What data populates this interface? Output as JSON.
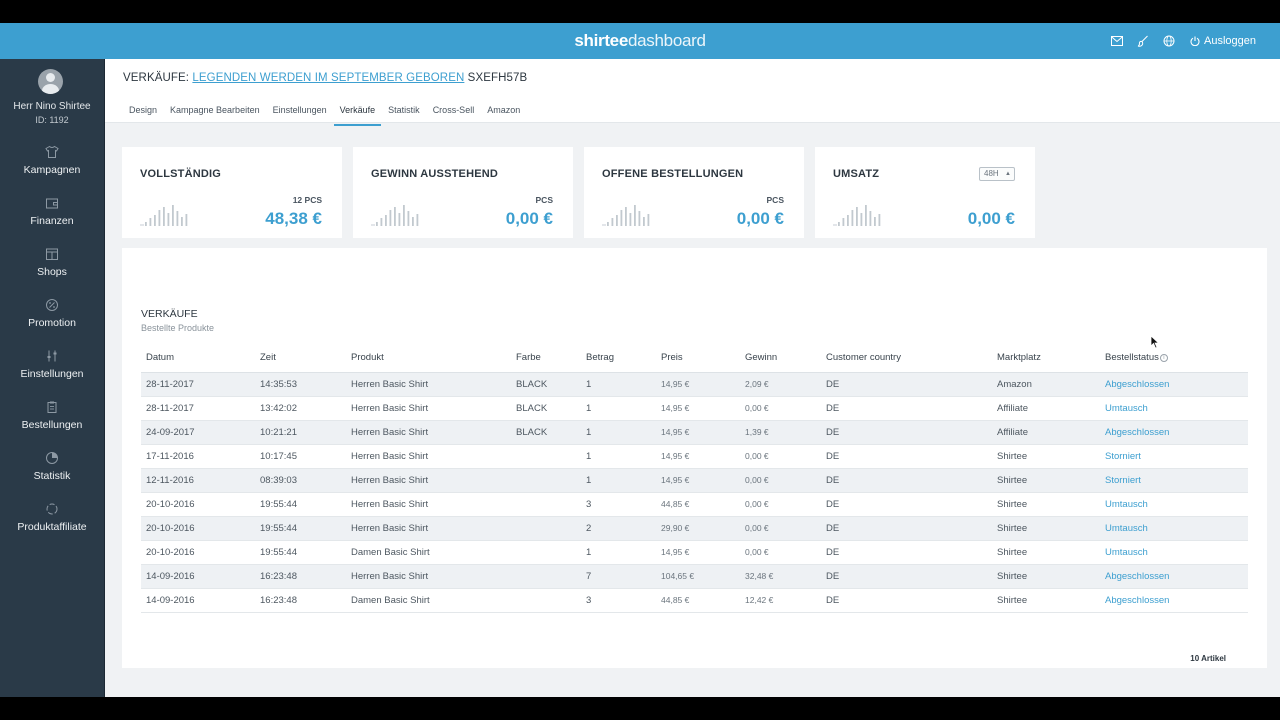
{
  "header": {
    "brand_bold": "shirtee",
    "brand_light": "dashboard",
    "logout_label": "Ausloggen",
    "icons": [
      "mail-icon",
      "brush-icon",
      "globe-icon",
      "power-icon"
    ]
  },
  "user": {
    "name": "Herr Nino Shirtee",
    "id": "ID: 1192"
  },
  "sidebar": {
    "items": [
      {
        "label": "Kampagnen",
        "icon": "tshirt-icon"
      },
      {
        "label": "Finanzen",
        "icon": "wallet-icon"
      },
      {
        "label": "Shops",
        "icon": "shop-icon"
      },
      {
        "label": "Promotion",
        "icon": "percent-icon"
      },
      {
        "label": "Einstellungen",
        "icon": "sliders-icon"
      },
      {
        "label": "Bestellungen",
        "icon": "clipboard-icon"
      },
      {
        "label": "Statistik",
        "icon": "pie-icon"
      },
      {
        "label": "Produktaffiliate",
        "icon": "cycle-icon"
      }
    ]
  },
  "page": {
    "title_prefix": "VERKÄUFE:",
    "campaign": "LEGENDEN WERDEN IM SEPTEMBER GEBOREN",
    "code": "SXEFH57B"
  },
  "tabs": [
    {
      "label": "Design"
    },
    {
      "label": "Kampagne Bearbeiten"
    },
    {
      "label": "Einstellungen"
    },
    {
      "label": "Verkäufe",
      "active": true
    },
    {
      "label": "Statistik"
    },
    {
      "label": "Cross-Sell"
    },
    {
      "label": "Amazon"
    }
  ],
  "cards": [
    {
      "title": "VOLLSTÄNDIG",
      "pcs": "12 PCS",
      "amount": "48,38 €"
    },
    {
      "title": "GEWINN AUSSTEHEND",
      "pcs": "PCS",
      "amount": "0,00 €"
    },
    {
      "title": "OFFENE BESTELLUNGEN",
      "pcs": "PCS",
      "amount": "0,00 €"
    },
    {
      "title": "UMSATZ",
      "pcs": "",
      "amount": "0,00 €",
      "select": "48H"
    }
  ],
  "sales": {
    "title": "VERKÄUFE",
    "subtitle": "Bestellte Produkte",
    "columns": [
      "Datum",
      "Zeit",
      "Produkt",
      "Farbe",
      "Betrag",
      "Preis",
      "Gewinn",
      "Customer country",
      "Marktplatz",
      "Bestellstatus"
    ],
    "rows": [
      [
        "28-11-2017",
        "14:35:53",
        "Herren Basic Shirt",
        "BLACK",
        "1",
        "14,95 €",
        "2,09 €",
        "DE",
        "Amazon",
        "Abgeschlossen"
      ],
      [
        "28-11-2017",
        "13:42:02",
        "Herren Basic Shirt",
        "BLACK",
        "1",
        "14,95 €",
        "0,00 €",
        "DE",
        "Affiliate",
        "Umtausch"
      ],
      [
        "24-09-2017",
        "10:21:21",
        "Herren Basic Shirt",
        "BLACK",
        "1",
        "14,95 €",
        "1,39 €",
        "DE",
        "Affiliate",
        "Abgeschlossen"
      ],
      [
        "17-11-2016",
        "10:17:45",
        "Herren Basic Shirt",
        "",
        "1",
        "14,95 €",
        "0,00 €",
        "DE",
        "Shirtee",
        "Storniert"
      ],
      [
        "12-11-2016",
        "08:39:03",
        "Herren Basic Shirt",
        "",
        "1",
        "14,95 €",
        "0,00 €",
        "DE",
        "Shirtee",
        "Storniert"
      ],
      [
        "20-10-2016",
        "19:55:44",
        "Herren Basic Shirt",
        "",
        "3",
        "44,85 €",
        "0,00 €",
        "DE",
        "Shirtee",
        "Umtausch"
      ],
      [
        "20-10-2016",
        "19:55:44",
        "Herren Basic Shirt",
        "",
        "2",
        "29,90 €",
        "0,00 €",
        "DE",
        "Shirtee",
        "Umtausch"
      ],
      [
        "20-10-2016",
        "19:55:44",
        "Damen Basic Shirt",
        "",
        "1",
        "14,95 €",
        "0,00 €",
        "DE",
        "Shirtee",
        "Umtausch"
      ],
      [
        "14-09-2016",
        "16:23:48",
        "Herren Basic Shirt",
        "",
        "7",
        "104,65 €",
        "32,48 €",
        "DE",
        "Shirtee",
        "Abgeschlossen"
      ],
      [
        "14-09-2016",
        "16:23:48",
        "Damen Basic Shirt",
        "",
        "3",
        "44,85 €",
        "12,42 €",
        "DE",
        "Shirtee",
        "Abgeschlossen"
      ]
    ],
    "count": "10 Artikel"
  },
  "colors": {
    "accent": "#3d9fd0",
    "sidebar": "#2a3a48",
    "background": "#f0f2f4"
  }
}
